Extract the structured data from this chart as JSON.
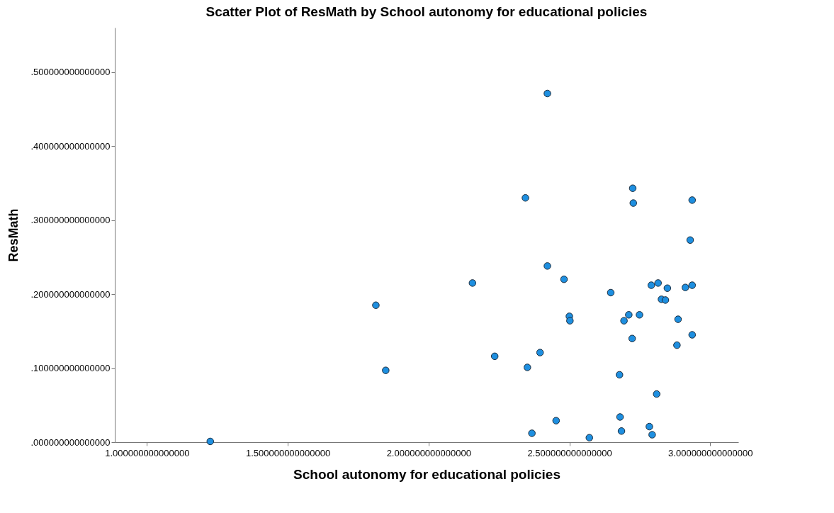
{
  "chart_data": {
    "type": "scatter",
    "title": "Scatter Plot of ResMath by School autonomy for educational policies",
    "xlabel": "School autonomy for educational policies",
    "ylabel": "ResMath",
    "xlim": [
      0.886,
      3.1
    ],
    "ylim": [
      0,
      0.56
    ],
    "xticks": [
      {
        "value": 1,
        "label": "1.000000000000000"
      },
      {
        "value": 1.5,
        "label": "1.500000000000000"
      },
      {
        "value": 2,
        "label": "2.000000000000000"
      },
      {
        "value": 2.5,
        "label": "2.500000000000000"
      },
      {
        "value": 3,
        "label": "3.000000000000000"
      }
    ],
    "yticks": [
      {
        "value": 0,
        "label": ".000000000000000"
      },
      {
        "value": 0.1,
        "label": ".100000000000000"
      },
      {
        "value": 0.2,
        "label": ".200000000000000"
      },
      {
        "value": 0.3,
        "label": ".300000000000000"
      },
      {
        "value": 0.4,
        "label": ".400000000000000"
      },
      {
        "value": 0.5,
        "label": ".500000000000000"
      }
    ],
    "grid": false,
    "marker": "circle",
    "series": [
      {
        "color": "#1e8fe0",
        "x": [
          1.225,
          1.813,
          1.848,
          2.156,
          2.235,
          2.344,
          2.351,
          2.367,
          2.396,
          2.422,
          2.422,
          2.453,
          2.481,
          2.5,
          2.502,
          2.571,
          2.647,
          2.678,
          2.68,
          2.685,
          2.694,
          2.711,
          2.725,
          2.727,
          2.723,
          2.749,
          2.784,
          2.791,
          2.794,
          2.81,
          2.815,
          2.827,
          2.841,
          2.848,
          2.882,
          2.886,
          2.912,
          2.929,
          2.936,
          2.936,
          2.936
        ],
        "values": [
          0.001,
          0.185,
          0.097,
          0.215,
          0.116,
          0.33,
          0.101,
          0.012,
          0.121,
          0.471,
          0.238,
          0.029,
          0.22,
          0.17,
          0.164,
          0.006,
          0.202,
          0.091,
          0.034,
          0.015,
          0.164,
          0.172,
          0.343,
          0.323,
          0.14,
          0.172,
          0.021,
          0.212,
          0.01,
          0.065,
          0.215,
          0.193,
          0.192,
          0.208,
          0.131,
          0.166,
          0.209,
          0.273,
          0.327,
          0.212,
          0.145
        ]
      }
    ]
  }
}
